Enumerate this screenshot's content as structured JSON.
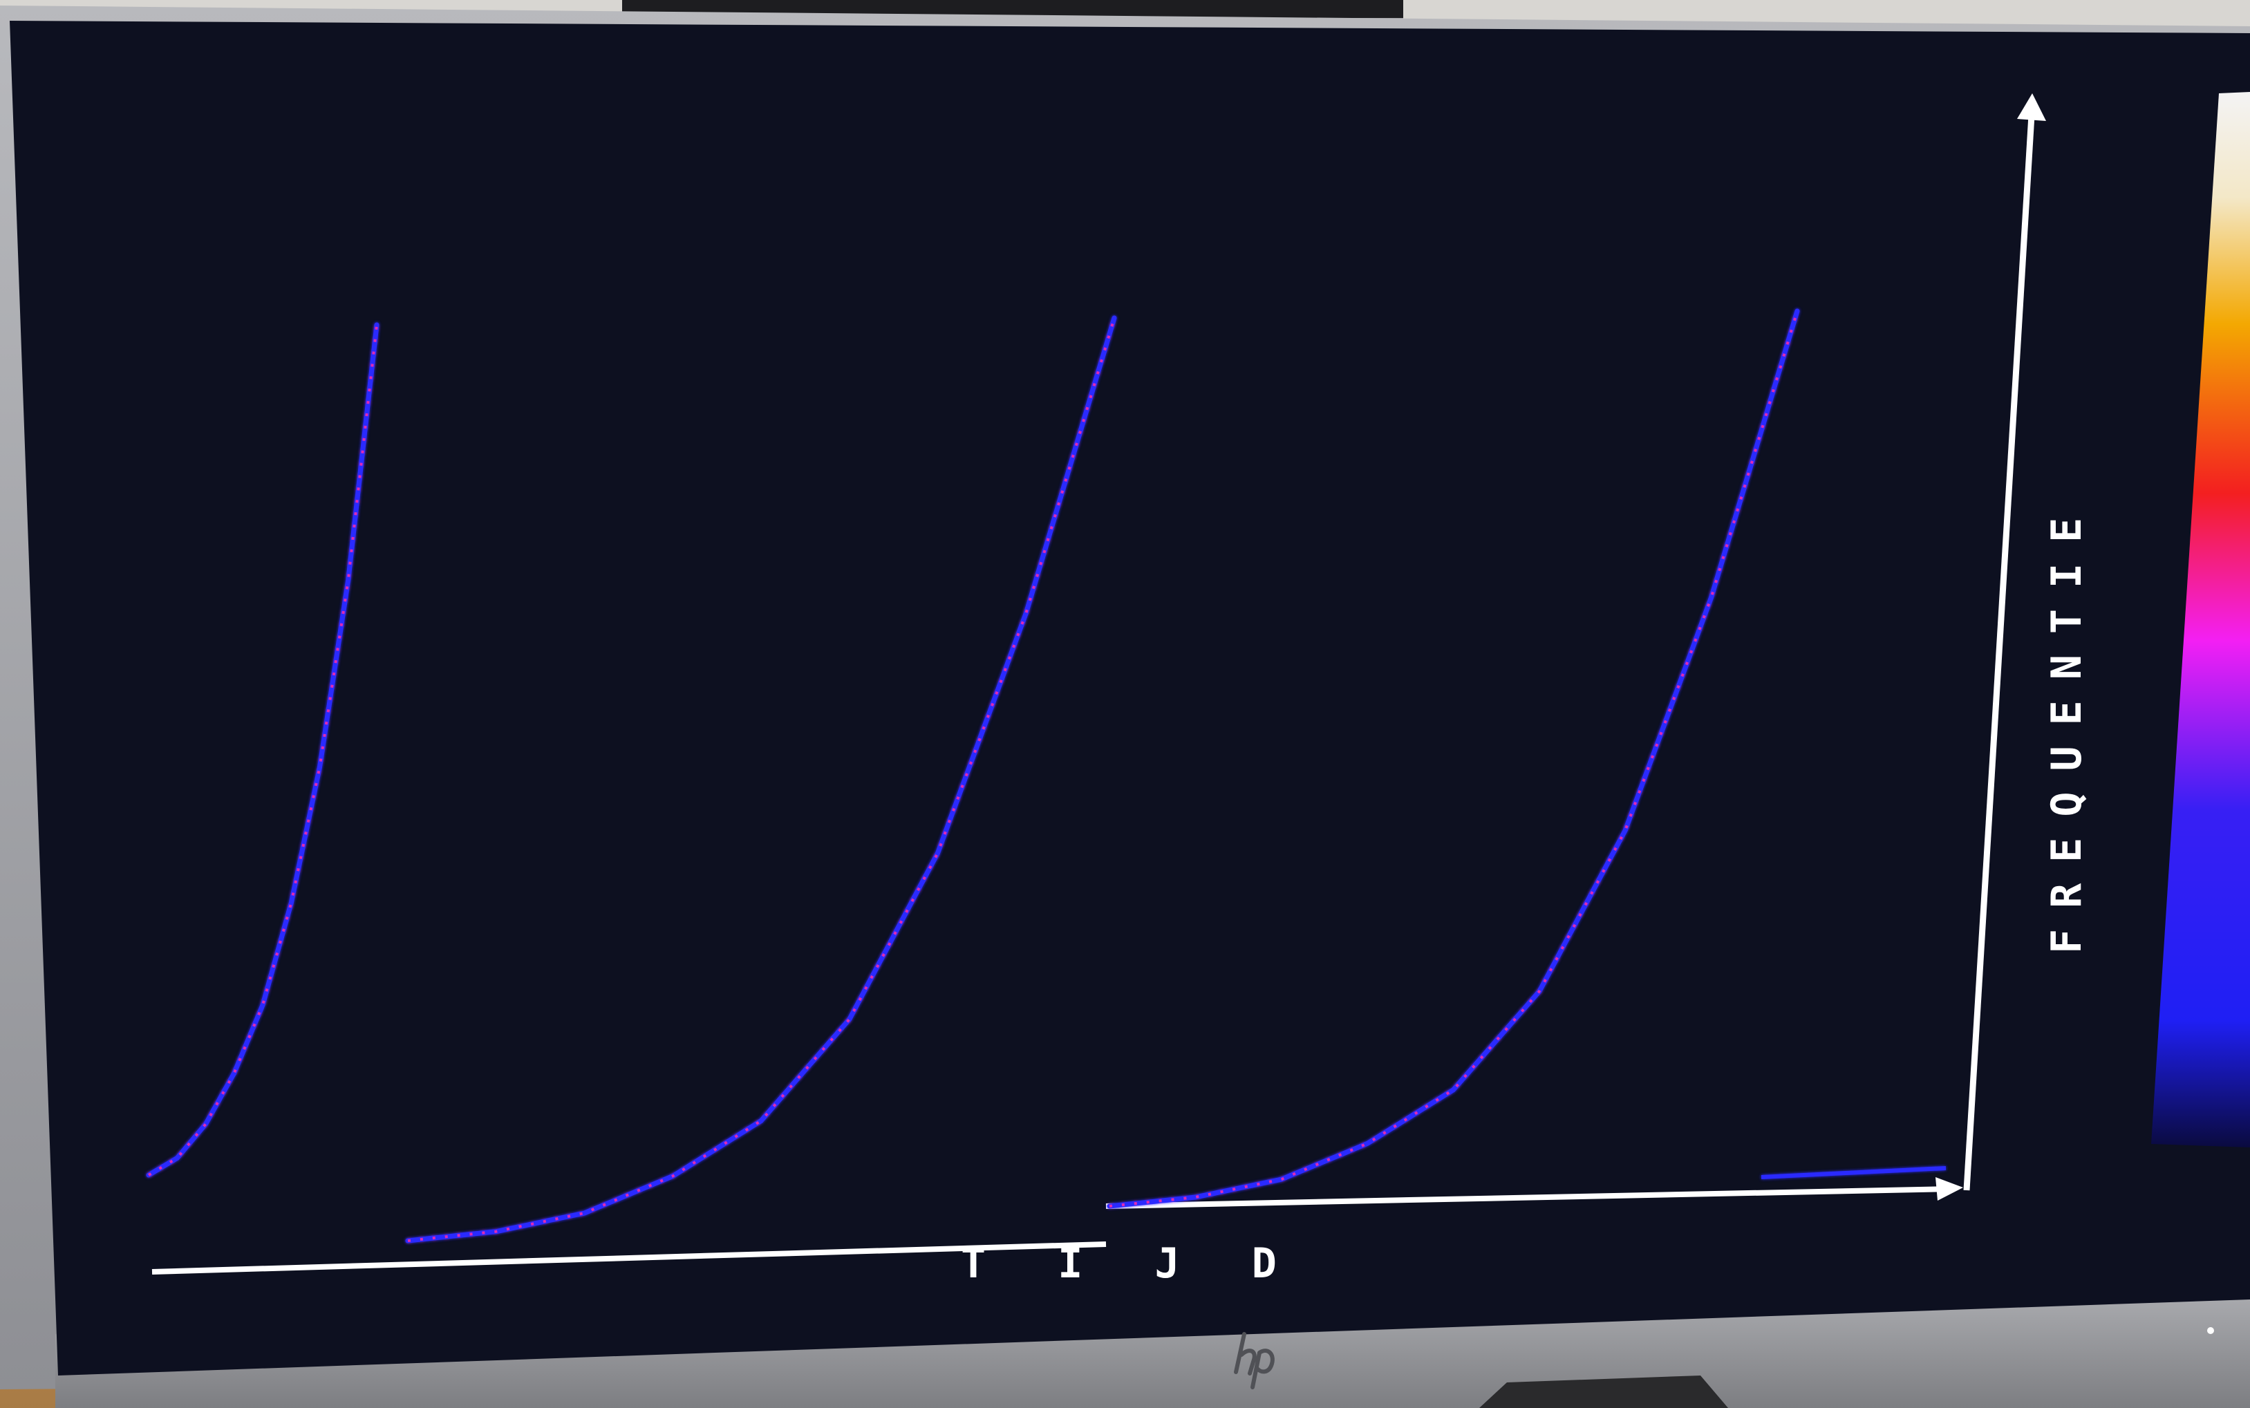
{
  "screen": {
    "x_axis_label": "T I J D",
    "y_axis_label": "FREQUENTIE",
    "brand_logo": "hp-logo"
  },
  "colors": {
    "screen_background": "#0d1020",
    "axis_color": "#ffffff",
    "trace_primary": "#2a2cff",
    "trace_accent": "#ff2aa8",
    "colorbar_stops": [
      "#0a0a40",
      "#2020ff",
      "#ff20ff",
      "#ff2020",
      "#ffc000",
      "#ffffff"
    ]
  },
  "chart_data": {
    "type": "line",
    "series": [
      {
        "values": [
          0,
          0.02,
          0.06,
          0.12,
          0.2,
          0.32,
          0.48,
          0.7,
          1.0
        ]
      },
      {
        "values": [
          0,
          0.01,
          0.03,
          0.07,
          0.13,
          0.24,
          0.42,
          0.68,
          1.0
        ]
      },
      {
        "values": [
          0,
          0.01,
          0.03,
          0.07,
          0.13,
          0.24,
          0.42,
          0.68,
          1.0
        ]
      }
    ]
  }
}
